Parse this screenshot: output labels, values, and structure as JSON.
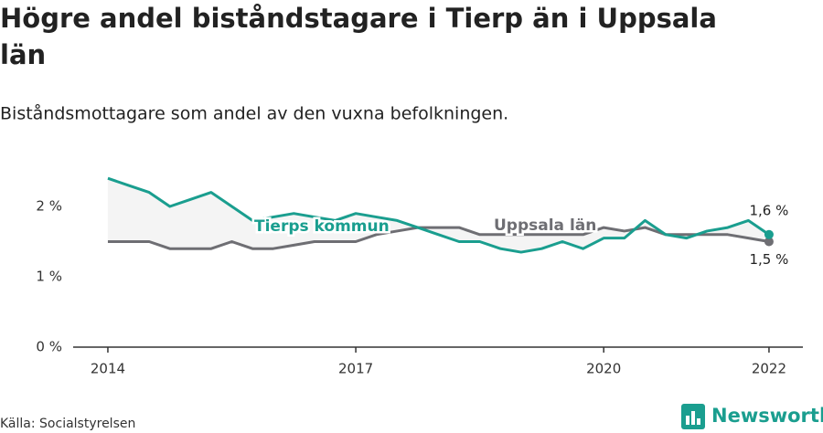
{
  "chart_data": {
    "type": "line",
    "title": "Högre andel biståndstagare i Tierp än i Uppsala län",
    "subtitle": "Biståndsmottagare som andel av den vuxna befolkningen.",
    "source": "Källa: Socialstyrelsen",
    "brand": "Newsworthy",
    "x": [
      2014,
      2014.25,
      2014.5,
      2014.75,
      2015,
      2015.25,
      2015.5,
      2015.75,
      2016,
      2016.25,
      2016.5,
      2016.75,
      2017,
      2017.25,
      2017.5,
      2017.75,
      2018,
      2018.25,
      2018.5,
      2018.75,
      2019,
      2019.25,
      2019.5,
      2019.75,
      2020,
      2020.25,
      2020.5,
      2020.75,
      2021,
      2021.25,
      2021.5,
      2021.75,
      2022
    ],
    "series": [
      {
        "name": "Tierps kommun",
        "color": "#1a9e8f",
        "end_label": "1,6 %",
        "values": [
          2.4,
          2.3,
          2.2,
          2.0,
          2.1,
          2.2,
          2.0,
          1.8,
          1.85,
          1.9,
          1.85,
          1.8,
          1.9,
          1.85,
          1.8,
          1.7,
          1.6,
          1.5,
          1.5,
          1.4,
          1.35,
          1.4,
          1.5,
          1.4,
          1.55,
          1.55,
          1.8,
          1.6,
          1.55,
          1.65,
          1.7,
          1.8,
          1.6
        ]
      },
      {
        "name": "Uppsala län",
        "color": "#6e6e73",
        "end_label": "1,5 %",
        "values": [
          1.5,
          1.5,
          1.5,
          1.4,
          1.4,
          1.4,
          1.5,
          1.4,
          1.4,
          1.45,
          1.5,
          1.5,
          1.5,
          1.6,
          1.65,
          1.7,
          1.7,
          1.7,
          1.6,
          1.6,
          1.6,
          1.6,
          1.6,
          1.6,
          1.7,
          1.65,
          1.7,
          1.6,
          1.6,
          1.6,
          1.6,
          1.55,
          1.5
        ]
      }
    ],
    "xlim": [
      2013.58,
      2022.41
    ],
    "xticks": [
      2014,
      2017,
      2020,
      2022
    ],
    "ylim": [
      0,
      2.5
    ],
    "yticks": [
      {
        "value": 0,
        "label": "0 %"
      },
      {
        "value": 1,
        "label": "1 %"
      },
      {
        "value": 2,
        "label": "2 %"
      }
    ],
    "grid": false
  }
}
